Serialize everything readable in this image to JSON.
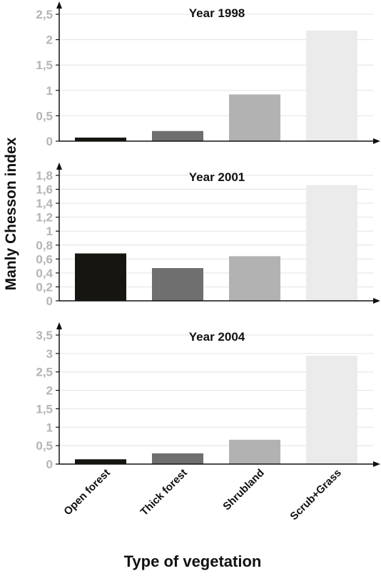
{
  "chart_data": {
    "type": "bar",
    "ylabel": "Manly Chesson index",
    "xlabel": "Type of vegetation",
    "categories": [
      "Open forest",
      "Thick forest",
      "Shrubland",
      "Scrub+Grass"
    ],
    "colors": [
      "#161510",
      "#6f6f6f",
      "#b2b2b2",
      "#ebebeb"
    ],
    "grid": true,
    "panels": [
      {
        "title": "Year 1998",
        "values": [
          0.07,
          0.2,
          0.92,
          2.18
        ],
        "ylim": [
          0,
          2.5
        ],
        "yticks": [
          0,
          0.5,
          1,
          1.5,
          2,
          2.5
        ],
        "ytick_labels": [
          "0",
          "0,5",
          "1",
          "1,5",
          "2",
          "2,5"
        ]
      },
      {
        "title": "Year 2001",
        "values": [
          0.68,
          0.47,
          0.64,
          1.66
        ],
        "ylim": [
          0,
          1.8
        ],
        "yticks": [
          0,
          0.2,
          0.4,
          0.6,
          0.8,
          1,
          1.2,
          1.4,
          1.6,
          1.8
        ],
        "ytick_labels": [
          "0",
          "0,2",
          "0,4",
          "0,6",
          "0,8",
          "1",
          "1,2",
          "1,4",
          "1,6",
          "1,8"
        ]
      },
      {
        "title": "Year 2004",
        "values": [
          0.13,
          0.29,
          0.66,
          2.94
        ],
        "ylim": [
          0,
          3.5
        ],
        "yticks": [
          0,
          0.5,
          1,
          1.5,
          2,
          2.5,
          3,
          3.5
        ],
        "ytick_labels": [
          "0",
          "0,5",
          "1",
          "1,5",
          "2",
          "2,5",
          "3",
          "3,5"
        ]
      }
    ]
  }
}
